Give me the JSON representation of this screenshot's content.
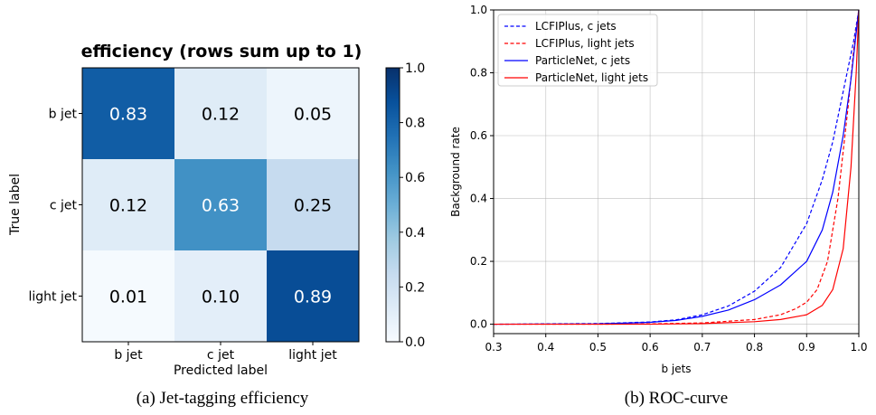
{
  "chart_data": [
    {
      "type": "heatmap",
      "title": "efficiency (rows sum up to 1)",
      "xlabel": "Predicted label",
      "ylabel": "True label",
      "x_categories": [
        "b jet",
        "c jet",
        "light jet"
      ],
      "y_categories": [
        "b jet",
        "c jet",
        "light jet"
      ],
      "values": [
        [
          0.83,
          0.12,
          0.05
        ],
        [
          0.12,
          0.63,
          0.25
        ],
        [
          0.01,
          0.1,
          0.89
        ]
      ],
      "value_labels": [
        [
          "0.83",
          "0.12",
          "0.05"
        ],
        [
          "0.12",
          "0.63",
          "0.25"
        ],
        [
          "0.01",
          "0.10",
          "0.89"
        ]
      ],
      "colorbar": {
        "range": [
          0.0,
          1.0
        ],
        "ticks": [
          0.0,
          0.2,
          0.4,
          0.6,
          0.8,
          1.0
        ],
        "tick_labels": [
          "0.0",
          "0.2",
          "0.4",
          "0.6",
          "0.8",
          "1.0"
        ],
        "colormap": "Blues"
      },
      "caption": "(a) Jet-tagging efficiency"
    },
    {
      "type": "line",
      "xlabel": "b jets",
      "ylabel": "Background rate",
      "xlim": [
        0.3,
        1.0
      ],
      "ylim": [
        -0.03,
        1.0
      ],
      "x_ticks": [
        0.3,
        0.4,
        0.5,
        0.6,
        0.7,
        0.8,
        0.9,
        1.0
      ],
      "x_tick_labels": [
        "0.3",
        "0.4",
        "0.5",
        "0.6",
        "0.7",
        "0.8",
        "0.9",
        "1.0"
      ],
      "y_ticks": [
        0.0,
        0.2,
        0.4,
        0.6,
        0.8,
        1.0
      ],
      "y_tick_labels": [
        "0.0",
        "0.2",
        "0.4",
        "0.6",
        "0.8",
        "1.0"
      ],
      "grid": true,
      "legend_position": "top-left",
      "series": [
        {
          "name": "LCFIPlus, c jets",
          "color": "#0000ff",
          "style": "dashed",
          "points": [
            [
              0.3,
              0.0
            ],
            [
              0.4,
              0.001
            ],
            [
              0.5,
              0.002
            ],
            [
              0.6,
              0.007
            ],
            [
              0.65,
              0.014
            ],
            [
              0.7,
              0.03
            ],
            [
              0.75,
              0.058
            ],
            [
              0.8,
              0.105
            ],
            [
              0.85,
              0.18
            ],
            [
              0.9,
              0.32
            ],
            [
              0.93,
              0.46
            ],
            [
              0.95,
              0.58
            ],
            [
              0.97,
              0.74
            ],
            [
              0.99,
              0.9
            ],
            [
              1.0,
              1.0
            ]
          ]
        },
        {
          "name": "LCFIPlus, light jets",
          "color": "#ff0000",
          "style": "dashed",
          "points": [
            [
              0.3,
              0.0
            ],
            [
              0.5,
              0.0
            ],
            [
              0.6,
              0.001
            ],
            [
              0.7,
              0.004
            ],
            [
              0.8,
              0.015
            ],
            [
              0.85,
              0.03
            ],
            [
              0.88,
              0.05
            ],
            [
              0.9,
              0.07
            ],
            [
              0.92,
              0.11
            ],
            [
              0.94,
              0.2
            ],
            [
              0.96,
              0.4
            ],
            [
              0.98,
              0.7
            ],
            [
              0.99,
              0.87
            ],
            [
              1.0,
              1.0
            ]
          ]
        },
        {
          "name": "ParticleNet, c jets",
          "color": "#0000ff",
          "style": "solid",
          "points": [
            [
              0.3,
              0.0
            ],
            [
              0.5,
              0.001
            ],
            [
              0.6,
              0.006
            ],
            [
              0.65,
              0.012
            ],
            [
              0.7,
              0.025
            ],
            [
              0.75,
              0.045
            ],
            [
              0.8,
              0.078
            ],
            [
              0.85,
              0.125
            ],
            [
              0.9,
              0.2
            ],
            [
              0.93,
              0.3
            ],
            [
              0.95,
              0.42
            ],
            [
              0.97,
              0.6
            ],
            [
              0.985,
              0.78
            ],
            [
              1.0,
              1.0
            ]
          ]
        },
        {
          "name": "ParticleNet, light jets",
          "color": "#ff0000",
          "style": "solid",
          "points": [
            [
              0.3,
              0.0
            ],
            [
              0.6,
              0.0
            ],
            [
              0.7,
              0.002
            ],
            [
              0.8,
              0.008
            ],
            [
              0.85,
              0.015
            ],
            [
              0.9,
              0.03
            ],
            [
              0.93,
              0.06
            ],
            [
              0.95,
              0.11
            ],
            [
              0.97,
              0.24
            ],
            [
              0.985,
              0.5
            ],
            [
              0.995,
              0.8
            ],
            [
              1.0,
              1.0
            ]
          ]
        }
      ],
      "caption": "(b) ROC-curve"
    }
  ]
}
